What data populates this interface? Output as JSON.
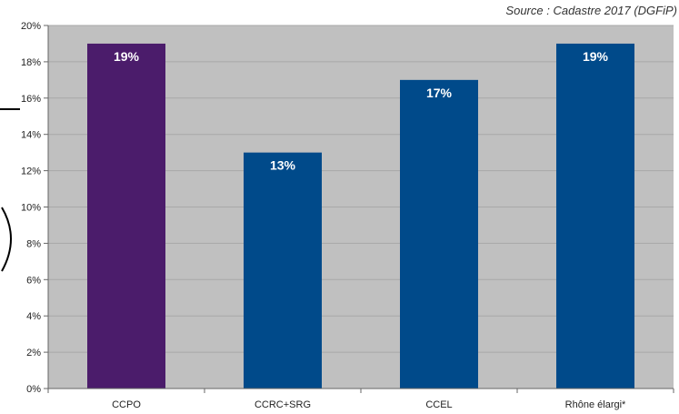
{
  "source_note": "Source : Cadastre 2017 (DGFiP)",
  "chart_data": {
    "type": "bar",
    "categories": [
      "CCPO",
      "CCRC+SRG",
      "CCEL",
      "Rhône élargi*"
    ],
    "values": [
      19,
      13,
      17,
      19
    ],
    "data_labels": [
      "19%",
      "13%",
      "17%",
      "19%"
    ],
    "y_ticks": [
      "0%",
      "2%",
      "4%",
      "6%",
      "8%",
      "10%",
      "12%",
      "14%",
      "16%",
      "18%",
      "20%"
    ],
    "ylim": [
      0,
      20
    ],
    "grid": true,
    "title": "",
    "xlabel": "",
    "ylabel": "",
    "colors": [
      "#4b1c6b",
      "#004a8a",
      "#004a8a",
      "#004a8a"
    ],
    "plot_background": "#c0c0c0"
  }
}
